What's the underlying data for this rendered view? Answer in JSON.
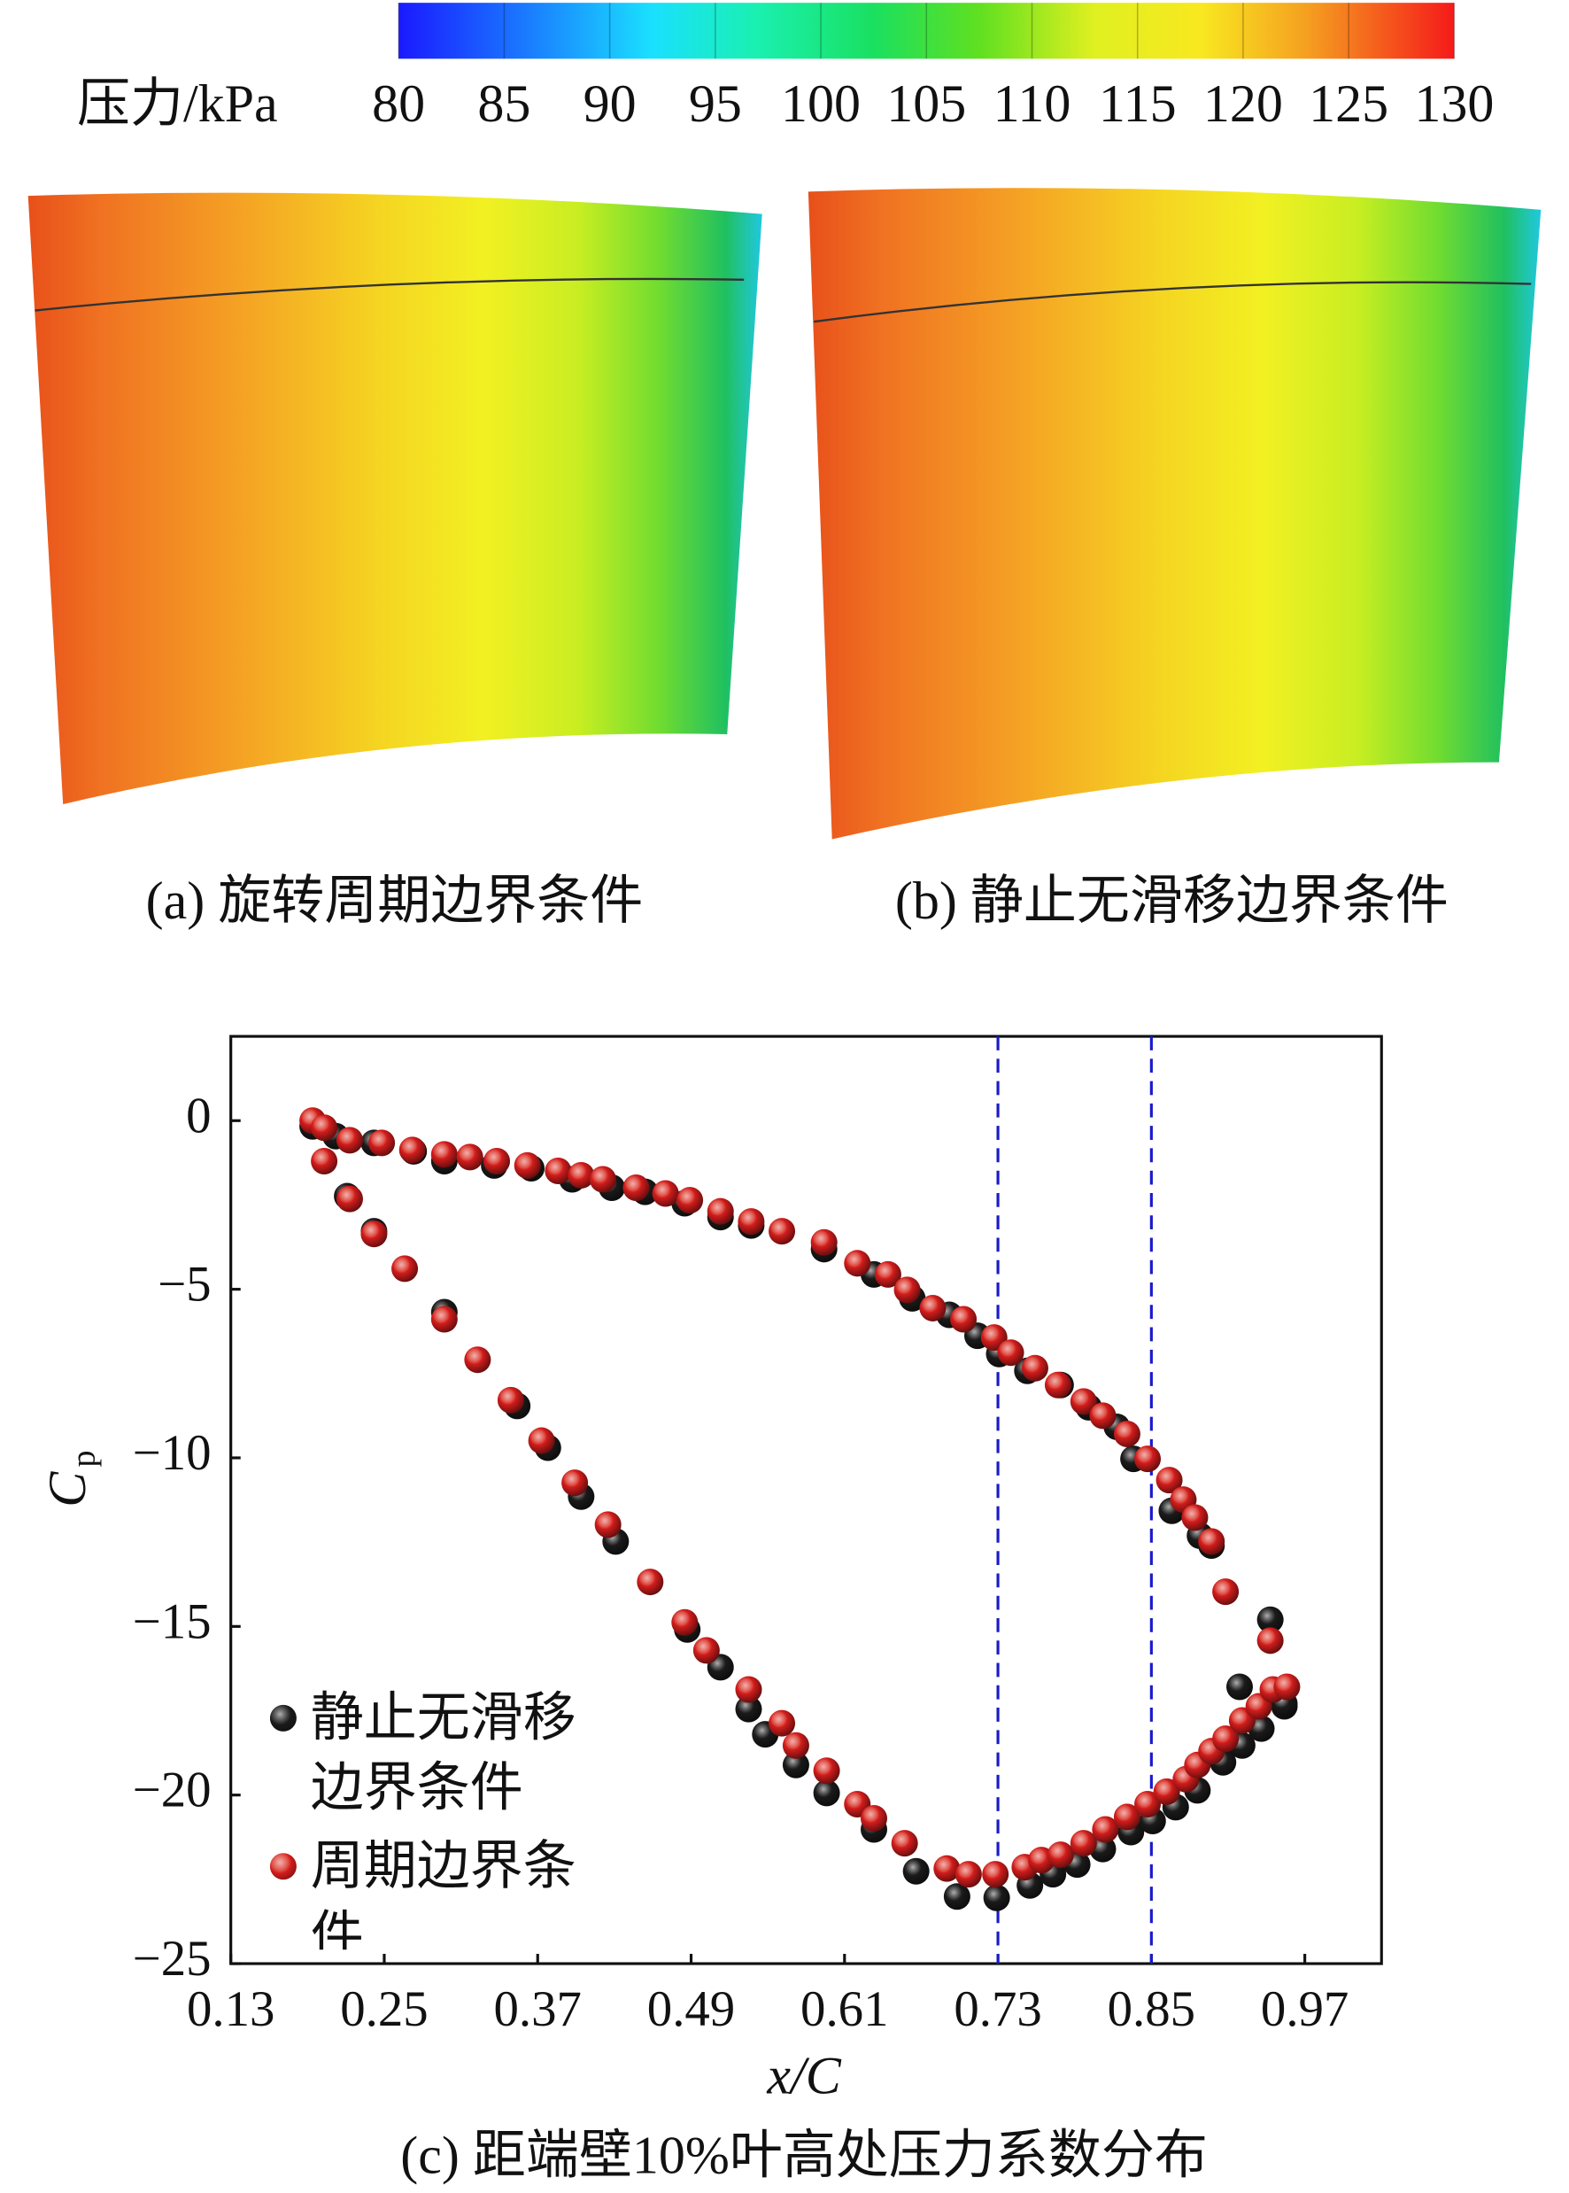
{
  "colorbar": {
    "label": "压力/kPa",
    "ticks": [
      80,
      85,
      90,
      95,
      100,
      105,
      110,
      115,
      120,
      125,
      130
    ]
  },
  "panels": [
    {
      "caption": "(a) 旋转周期边界条件"
    },
    {
      "caption": "(b) 静止无滑移边界条件"
    }
  ],
  "chart_data": {
    "type": "scatter",
    "caption": "(c) 距端壁10%叶高处压力系数分布",
    "x_label": "x/C",
    "y_label": "C",
    "y_label_subscript": "p",
    "xlim": [
      0.13,
      1.03
    ],
    "ylim": [
      -25,
      2.5
    ],
    "xticks": [
      0.13,
      0.25,
      0.37,
      0.49,
      0.61,
      0.73,
      0.85,
      0.97
    ],
    "yticks": [
      {
        "value": -25,
        "label": "−25"
      },
      {
        "value": -20,
        "label": "−20"
      },
      {
        "value": -15,
        "label": "−15"
      },
      {
        "value": -10,
        "label": "−10"
      },
      {
        "value": -5,
        "label": "−5"
      },
      0
    ],
    "vlines": {
      "x": [
        0.73,
        0.85
      ],
      "color": "#1a1acc"
    },
    "legend": "lower-left",
    "series": [
      {
        "name": "静止无滑移边界条件",
        "color": "#1a1a1a",
        "x": [
          0.194,
          0.212,
          0.242,
          0.273,
          0.297,
          0.336,
          0.365,
          0.397,
          0.428,
          0.454,
          0.485,
          0.513,
          0.537,
          0.594,
          0.633,
          0.663,
          0.692,
          0.714,
          0.731,
          0.753,
          0.779,
          0.801,
          0.823,
          0.836,
          0.866,
          0.888,
          0.897,
          0.919,
          0.943,
          0.954,
          0.221,
          0.242,
          0.297,
          0.354,
          0.378,
          0.404,
          0.431,
          0.487,
          0.513,
          0.535,
          0.548,
          0.572,
          0.596,
          0.633,
          0.666,
          0.698,
          0.729,
          0.755,
          0.773,
          0.792,
          0.812,
          0.834,
          0.851,
          0.869,
          0.886,
          0.906,
          0.921,
          0.936,
          0.954
        ],
        "values": [
          -0.17,
          -0.46,
          -0.66,
          -0.91,
          -1.2,
          -1.33,
          -1.41,
          -1.74,
          -1.99,
          -2.11,
          -2.45,
          -2.86,
          -3.11,
          -3.81,
          -4.56,
          -5.27,
          -5.76,
          -6.38,
          -6.92,
          -7.42,
          -7.84,
          -8.5,
          -9.08,
          -10.03,
          -11.57,
          -12.31,
          -12.6,
          -16.79,
          -14.8,
          -17.37,
          -2.24,
          -3.28,
          -5.68,
          -8.46,
          -9.7,
          -11.15,
          -12.48,
          -15.09,
          -16.21,
          -17.45,
          -18.2,
          -19.11,
          -19.94,
          -21.02,
          -22.26,
          -23.01,
          -23.05,
          -22.68,
          -22.35,
          -22.06,
          -21.6,
          -21.1,
          -20.77,
          -20.36,
          -19.86,
          -19.03,
          -18.53,
          -18.03,
          -17.29
        ]
      },
      {
        "name": "周期边界条件",
        "color": "#d41c1c",
        "x": [
          0.194,
          0.203,
          0.223,
          0.248,
          0.272,
          0.297,
          0.317,
          0.338,
          0.362,
          0.386,
          0.404,
          0.421,
          0.447,
          0.47,
          0.489,
          0.513,
          0.537,
          0.561,
          0.594,
          0.62,
          0.644,
          0.659,
          0.679,
          0.703,
          0.727,
          0.74,
          0.759,
          0.777,
          0.797,
          0.812,
          0.831,
          0.847,
          0.864,
          0.875,
          0.884,
          0.897,
          0.908,
          0.943,
          0.203,
          0.223,
          0.242,
          0.266,
          0.297,
          0.323,
          0.349,
          0.373,
          0.399,
          0.425,
          0.458,
          0.485,
          0.502,
          0.535,
          0.561,
          0.572,
          0.596,
          0.62,
          0.633,
          0.657,
          0.69,
          0.707,
          0.728,
          0.751,
          0.764,
          0.779,
          0.797,
          0.814,
          0.831,
          0.847,
          0.862,
          0.877,
          0.886,
          0.897,
          0.908,
          0.921,
          0.934,
          0.945,
          0.956
        ],
        "values": [
          0,
          -0.21,
          -0.58,
          -0.66,
          -0.87,
          -1.0,
          -1.08,
          -1.2,
          -1.33,
          -1.49,
          -1.62,
          -1.74,
          -1.99,
          -2.16,
          -2.36,
          -2.69,
          -2.99,
          -3.28,
          -3.61,
          -4.23,
          -4.56,
          -5.02,
          -5.56,
          -5.89,
          -6.43,
          -6.88,
          -7.34,
          -7.84,
          -8.33,
          -8.75,
          -9.29,
          -10.03,
          -10.66,
          -11.24,
          -11.77,
          -12.48,
          -13.97,
          -15.42,
          -1.2,
          -2.32,
          -3.36,
          -4.39,
          -5.89,
          -7.09,
          -8.29,
          -9.49,
          -10.74,
          -11.98,
          -13.68,
          -14.88,
          -15.71,
          -16.87,
          -17.87,
          -18.53,
          -19.28,
          -20.27,
          -20.69,
          -21.43,
          -22.18,
          -22.35,
          -22.35,
          -22.14,
          -21.93,
          -21.77,
          -21.43,
          -21.02,
          -20.65,
          -20.27,
          -19.9,
          -19.53,
          -19.11,
          -18.7,
          -18.33,
          -17.79,
          -17.37,
          -16.87,
          -16.79
        ]
      }
    ]
  }
}
